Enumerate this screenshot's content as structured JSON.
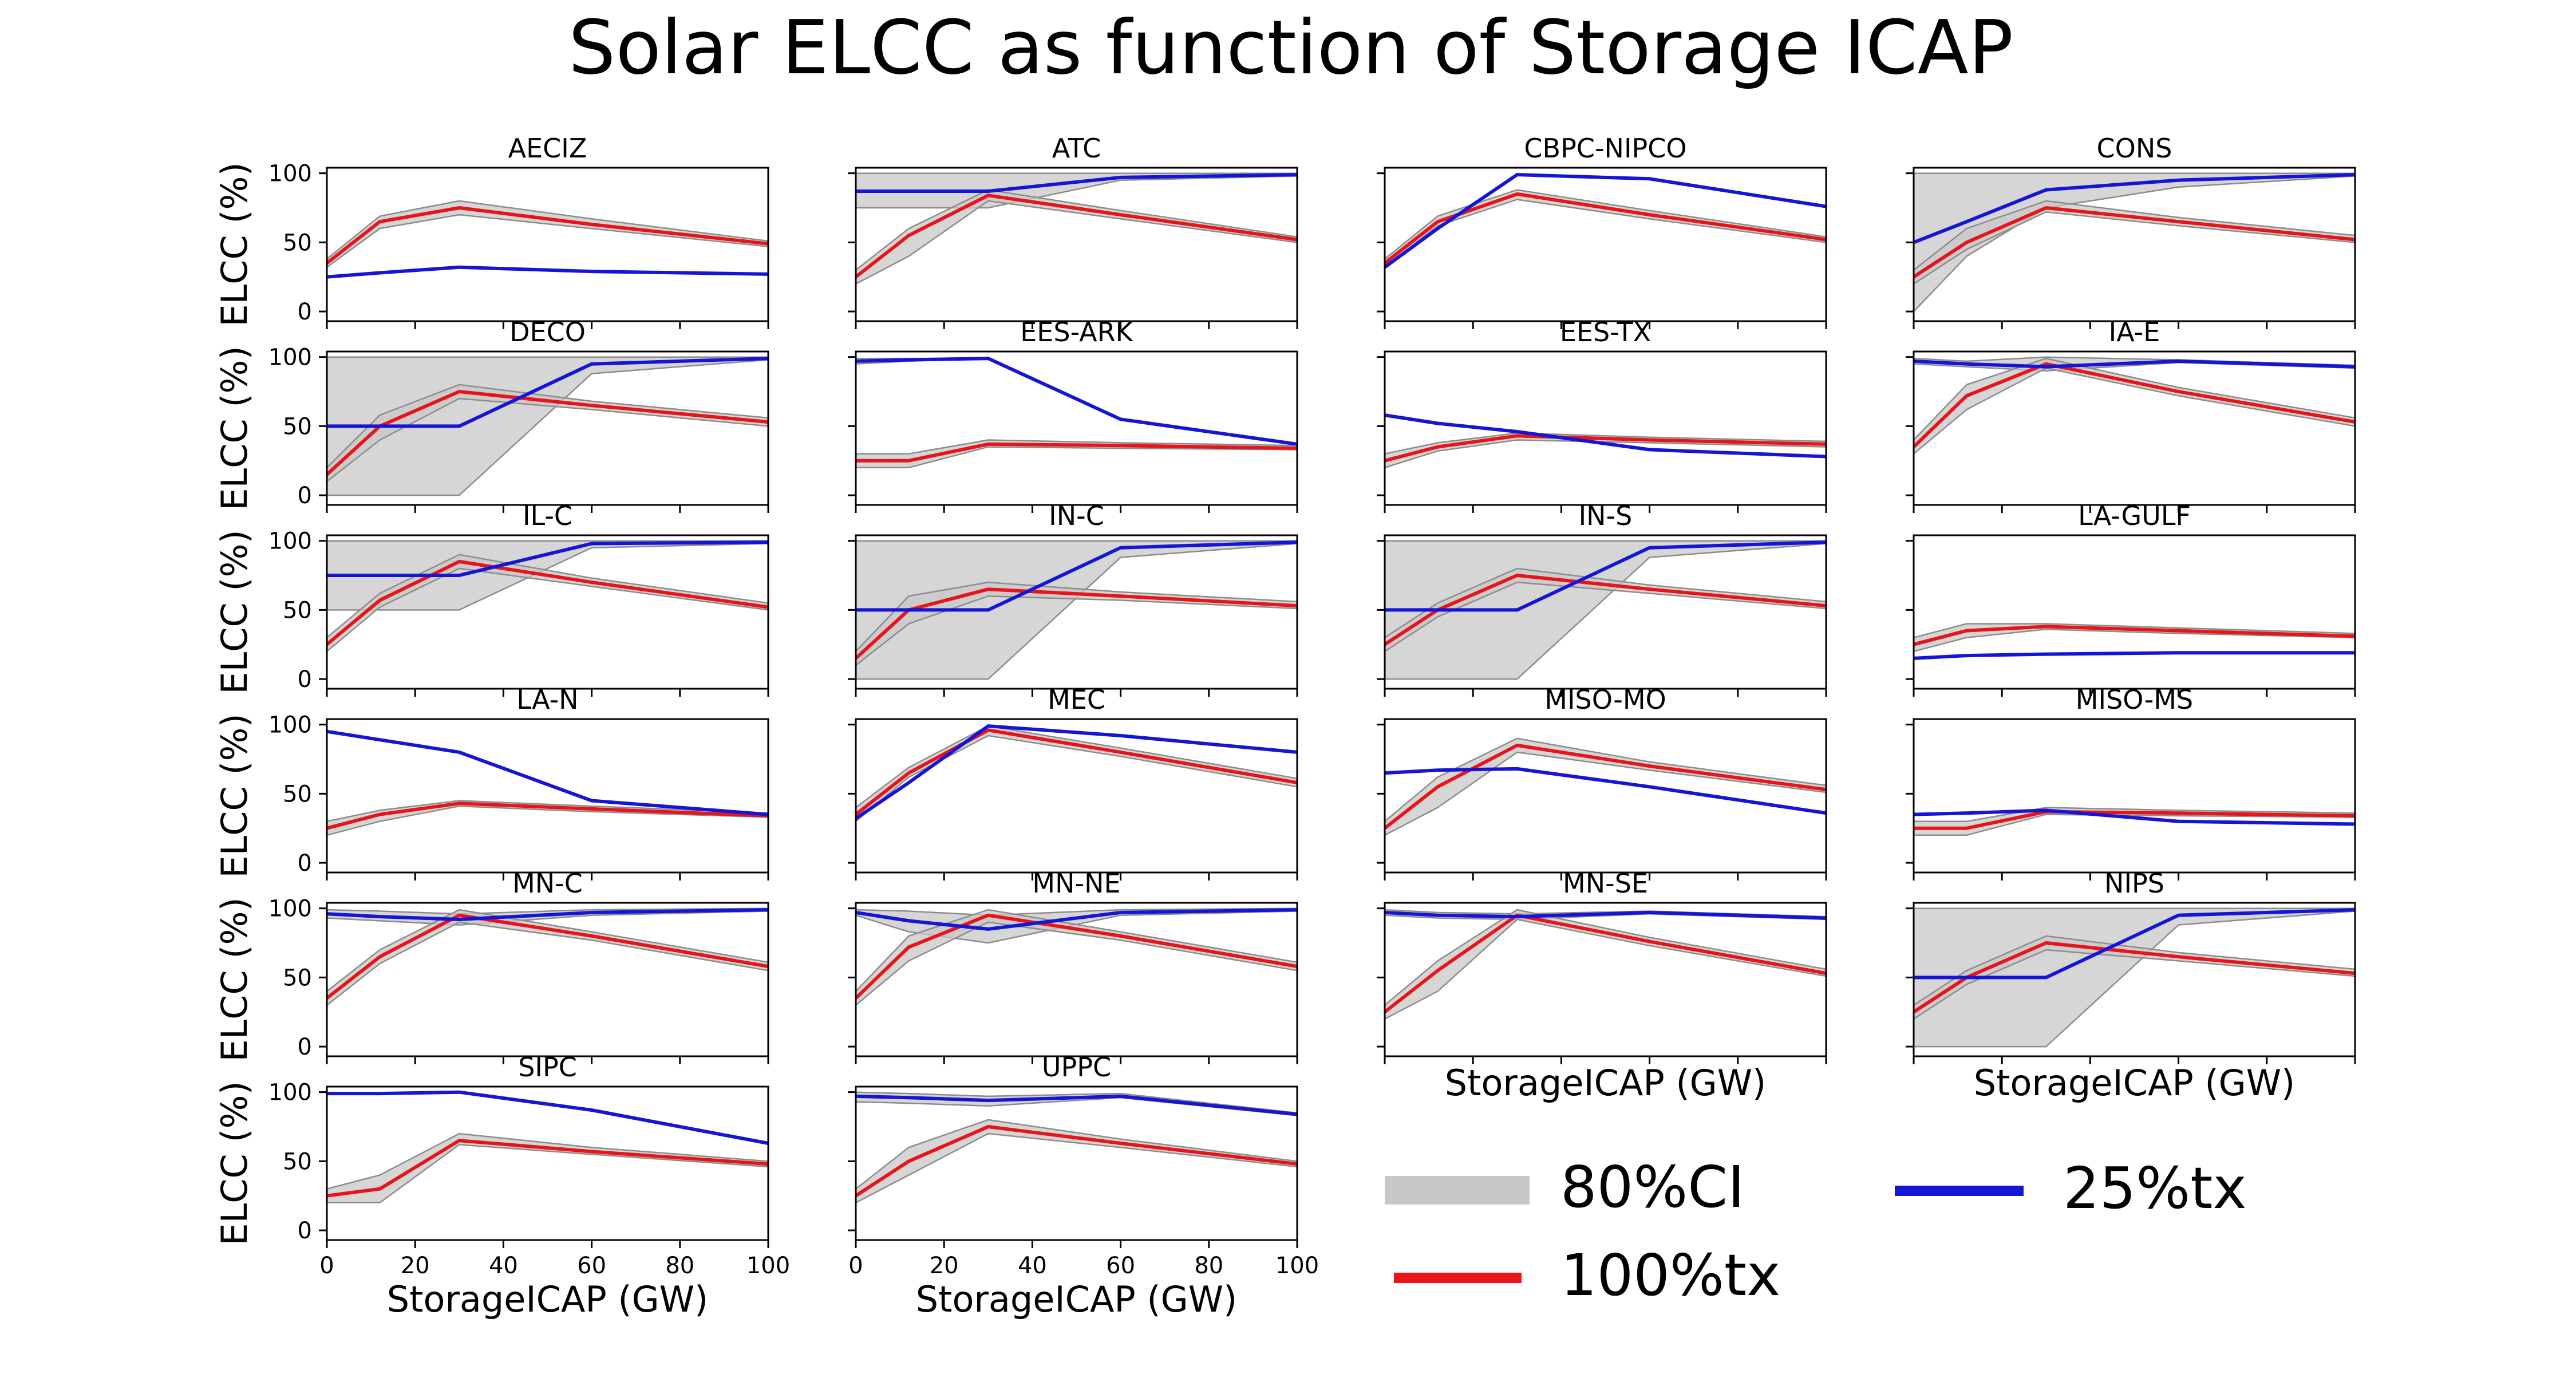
{
  "chart_data": {
    "type": "line",
    "title": "Solar ELCC as function of Storage ICAP",
    "xlabel": "StorageICAP (GW)",
    "ylabel": "ELCC (%)",
    "xlim": [
      0,
      100
    ],
    "ylim": [
      0,
      100
    ],
    "xticks": [
      0,
      20,
      40,
      60,
      80,
      100
    ],
    "yticks": [
      0,
      50,
      100
    ],
    "x": [
      0,
      12,
      30,
      60,
      100
    ],
    "grid": false,
    "legend_placement": "bottom-right",
    "legend": [
      {
        "key": "ci",
        "label": "80%CI",
        "color": "#c8c8c8"
      },
      {
        "key": "tx100",
        "label": "100%tx",
        "color": "#e8141a"
      },
      {
        "key": "tx25",
        "label": "25%tx",
        "color": "#1515d8"
      }
    ],
    "colors": {
      "ci": "#c8c8c8",
      "ci_edge": "#8c8c8c",
      "tx100": "#e8141a",
      "tx25": "#1515d8"
    },
    "panels": [
      {
        "name": "AECIZ",
        "tx100": [
          35,
          65,
          75,
          63,
          49
        ],
        "tx100_lo": [
          32,
          60,
          70,
          60,
          47
        ],
        "tx100_hi": [
          38,
          69,
          80,
          67,
          51
        ],
        "tx25": [
          25,
          28,
          32,
          29,
          27
        ],
        "tx25_lo": [
          25,
          28,
          32,
          29,
          27
        ],
        "tx25_hi": [
          25,
          28,
          32,
          29,
          27
        ]
      },
      {
        "name": "ATC",
        "tx100": [
          25,
          55,
          84,
          70,
          52
        ],
        "tx100_lo": [
          20,
          40,
          80,
          67,
          50
        ],
        "tx100_hi": [
          30,
          60,
          88,
          73,
          54
        ],
        "tx25": [
          87,
          87,
          87,
          97,
          99
        ],
        "tx25_lo": [
          75,
          75,
          75,
          95,
          98
        ],
        "tx25_hi": [
          100,
          100,
          100,
          100,
          100
        ]
      },
      {
        "name": "CBPC-NIPCO",
        "tx100": [
          35,
          65,
          85,
          70,
          52
        ],
        "tx100_lo": [
          32,
          62,
          81,
          67,
          50
        ],
        "tx100_hi": [
          38,
          69,
          88,
          73,
          54
        ],
        "tx25": [
          32,
          60,
          99,
          96,
          76
        ],
        "tx25_lo": [
          32,
          60,
          99,
          96,
          76
        ],
        "tx25_hi": [
          32,
          60,
          99,
          96,
          76
        ]
      },
      {
        "name": "CONS",
        "tx100": [
          25,
          50,
          75,
          65,
          52
        ],
        "tx100_lo": [
          20,
          45,
          72,
          62,
          50
        ],
        "tx100_hi": [
          30,
          60,
          80,
          68,
          55
        ],
        "tx25": [
          50,
          65,
          88,
          95,
          99
        ],
        "tx25_lo": [
          0,
          40,
          75,
          90,
          98
        ],
        "tx25_hi": [
          100,
          100,
          100,
          100,
          100
        ]
      },
      {
        "name": "DECO",
        "tx100": [
          15,
          50,
          75,
          65,
          53
        ],
        "tx100_lo": [
          10,
          40,
          70,
          62,
          50
        ],
        "tx100_hi": [
          20,
          58,
          80,
          68,
          56
        ],
        "tx25": [
          50,
          50,
          50,
          95,
          99
        ],
        "tx25_lo": [
          0,
          0,
          0,
          88,
          98
        ],
        "tx25_hi": [
          100,
          100,
          100,
          100,
          100
        ]
      },
      {
        "name": "EES-ARK",
        "tx100": [
          25,
          25,
          37,
          36,
          34
        ],
        "tx100_lo": [
          20,
          20,
          35,
          34,
          33
        ],
        "tx100_hi": [
          30,
          30,
          40,
          38,
          36
        ],
        "tx25": [
          97,
          98,
          99,
          55,
          37
        ],
        "tx25_lo": [
          95,
          97,
          99,
          55,
          37
        ],
        "tx25_hi": [
          99,
          99,
          99,
          55,
          37
        ]
      },
      {
        "name": "EES-TX",
        "tx100": [
          25,
          35,
          43,
          40,
          37
        ],
        "tx100_lo": [
          20,
          32,
          40,
          38,
          35
        ],
        "tx100_hi": [
          30,
          38,
          45,
          42,
          39
        ],
        "tx25": [
          58,
          52,
          46,
          33,
          28
        ],
        "tx25_lo": [
          58,
          52,
          46,
          33,
          28
        ],
        "tx25_hi": [
          58,
          52,
          46,
          33,
          28
        ]
      },
      {
        "name": "IA-E",
        "tx100": [
          35,
          72,
          95,
          75,
          53
        ],
        "tx100_lo": [
          30,
          62,
          92,
          72,
          50
        ],
        "tx100_hi": [
          40,
          80,
          99,
          78,
          56
        ],
        "tx25": [
          97,
          95,
          93,
          97,
          93
        ],
        "tx25_lo": [
          95,
          93,
          90,
          96,
          92
        ],
        "tx25_hi": [
          99,
          97,
          100,
          98,
          94
        ]
      },
      {
        "name": "IL-C",
        "tx100": [
          25,
          57,
          85,
          70,
          52
        ],
        "tx100_lo": [
          20,
          52,
          80,
          67,
          50
        ],
        "tx100_hi": [
          30,
          62,
          90,
          73,
          55
        ],
        "tx25": [
          75,
          75,
          75,
          98,
          99
        ],
        "tx25_lo": [
          50,
          50,
          50,
          95,
          98
        ],
        "tx25_hi": [
          100,
          100,
          100,
          100,
          100
        ]
      },
      {
        "name": "IN-C",
        "tx100": [
          15,
          50,
          65,
          60,
          53
        ],
        "tx100_lo": [
          10,
          40,
          60,
          57,
          51
        ],
        "tx100_hi": [
          20,
          60,
          70,
          63,
          56
        ],
        "tx25": [
          50,
          50,
          50,
          95,
          99
        ],
        "tx25_lo": [
          0,
          0,
          0,
          88,
          98
        ],
        "tx25_hi": [
          100,
          100,
          100,
          100,
          100
        ]
      },
      {
        "name": "IN-S",
        "tx100": [
          25,
          50,
          75,
          65,
          53
        ],
        "tx100_lo": [
          20,
          45,
          70,
          62,
          51
        ],
        "tx100_hi": [
          30,
          55,
          80,
          68,
          56
        ],
        "tx25": [
          50,
          50,
          50,
          95,
          99
        ],
        "tx25_lo": [
          0,
          0,
          0,
          88,
          98
        ],
        "tx25_hi": [
          100,
          100,
          100,
          100,
          100
        ]
      },
      {
        "name": "LA-GULF",
        "tx100": [
          25,
          35,
          38,
          35,
          31
        ],
        "tx100_lo": [
          20,
          30,
          36,
          33,
          30
        ],
        "tx100_hi": [
          30,
          40,
          40,
          37,
          33
        ],
        "tx25": [
          15,
          17,
          18,
          19,
          19
        ],
        "tx25_lo": [
          15,
          17,
          18,
          19,
          19
        ],
        "tx25_hi": [
          15,
          17,
          18,
          19,
          19
        ]
      },
      {
        "name": "LA-N",
        "tx100": [
          25,
          35,
          43,
          39,
          34
        ],
        "tx100_lo": [
          20,
          30,
          41,
          37,
          33
        ],
        "tx100_hi": [
          30,
          38,
          45,
          41,
          36
        ],
        "tx25": [
          95,
          89,
          80,
          45,
          35
        ],
        "tx25_lo": [
          95,
          89,
          80,
          45,
          35
        ],
        "tx25_hi": [
          95,
          89,
          80,
          45,
          35
        ]
      },
      {
        "name": "MEC",
        "tx100": [
          35,
          65,
          96,
          80,
          58
        ],
        "tx100_lo": [
          30,
          62,
          92,
          77,
          55
        ],
        "tx100_hi": [
          40,
          69,
          99,
          83,
          61
        ],
        "tx25": [
          32,
          58,
          99,
          92,
          80
        ],
        "tx25_lo": [
          32,
          58,
          99,
          92,
          80
        ],
        "tx25_hi": [
          32,
          58,
          99,
          92,
          80
        ]
      },
      {
        "name": "MISO-MO",
        "tx100": [
          25,
          55,
          85,
          70,
          53
        ],
        "tx100_lo": [
          20,
          40,
          80,
          67,
          51
        ],
        "tx100_hi": [
          30,
          62,
          90,
          73,
          56
        ],
        "tx25": [
          65,
          67,
          68,
          55,
          36
        ],
        "tx25_lo": [
          65,
          67,
          68,
          55,
          36
        ],
        "tx25_hi": [
          65,
          67,
          68,
          55,
          36
        ]
      },
      {
        "name": "MISO-MS",
        "tx100": [
          25,
          25,
          37,
          36,
          34
        ],
        "tx100_lo": [
          20,
          20,
          35,
          34,
          33
        ],
        "tx100_hi": [
          30,
          30,
          40,
          38,
          36
        ],
        "tx25": [
          35,
          36,
          38,
          30,
          28
        ],
        "tx25_lo": [
          35,
          36,
          38,
          30,
          28
        ],
        "tx25_hi": [
          35,
          36,
          38,
          30,
          28
        ]
      },
      {
        "name": "MN-C",
        "tx100": [
          35,
          65,
          95,
          80,
          58
        ],
        "tx100_lo": [
          30,
          60,
          90,
          77,
          55
        ],
        "tx100_hi": [
          40,
          70,
          99,
          83,
          61
        ],
        "tx25": [
          96,
          94,
          92,
          97,
          99
        ],
        "tx25_lo": [
          93,
          91,
          88,
          95,
          98
        ],
        "tx25_hi": [
          99,
          98,
          96,
          99,
          100
        ]
      },
      {
        "name": "MN-NE",
        "tx100": [
          35,
          72,
          95,
          80,
          58
        ],
        "tx100_lo": [
          30,
          62,
          90,
          77,
          55
        ],
        "tx100_hi": [
          40,
          80,
          99,
          83,
          61
        ],
        "tx25": [
          97,
          91,
          85,
          97,
          99
        ],
        "tx25_lo": [
          95,
          83,
          75,
          95,
          98
        ],
        "tx25_hi": [
          99,
          98,
          95,
          99,
          100
        ]
      },
      {
        "name": "MN-SE",
        "tx100": [
          25,
          55,
          95,
          76,
          53
        ],
        "tx100_lo": [
          20,
          40,
          92,
          73,
          51
        ],
        "tx100_hi": [
          30,
          62,
          99,
          79,
          56
        ],
        "tx25": [
          97,
          95,
          94,
          97,
          93
        ],
        "tx25_lo": [
          95,
          93,
          92,
          96,
          92
        ],
        "tx25_hi": [
          99,
          97,
          96,
          98,
          94
        ]
      },
      {
        "name": "NIPS",
        "tx100": [
          25,
          50,
          75,
          65,
          53
        ],
        "tx100_lo": [
          20,
          45,
          70,
          62,
          51
        ],
        "tx100_hi": [
          30,
          55,
          80,
          68,
          56
        ],
        "tx25": [
          50,
          50,
          50,
          95,
          99
        ],
        "tx25_lo": [
          0,
          0,
          0,
          88,
          98
        ],
        "tx25_hi": [
          100,
          100,
          100,
          100,
          100
        ]
      },
      {
        "name": "SIPC",
        "tx100": [
          25,
          30,
          65,
          57,
          48
        ],
        "tx100_lo": [
          20,
          20,
          62,
          55,
          46
        ],
        "tx100_hi": [
          30,
          40,
          70,
          60,
          50
        ],
        "tx25": [
          99,
          99,
          100,
          87,
          63
        ],
        "tx25_lo": [
          99,
          99,
          100,
          87,
          63
        ],
        "tx25_hi": [
          99,
          99,
          100,
          87,
          63
        ]
      },
      {
        "name": "UPPC",
        "tx100": [
          25,
          50,
          75,
          63,
          48
        ],
        "tx100_lo": [
          20,
          40,
          70,
          60,
          46
        ],
        "tx100_hi": [
          30,
          60,
          80,
          66,
          50
        ],
        "tx25": [
          97,
          96,
          94,
          97,
          84
        ],
        "tx25_lo": [
          93,
          92,
          90,
          96,
          83
        ],
        "tx25_hi": [
          100,
          99,
          97,
          99,
          85
        ]
      }
    ]
  }
}
